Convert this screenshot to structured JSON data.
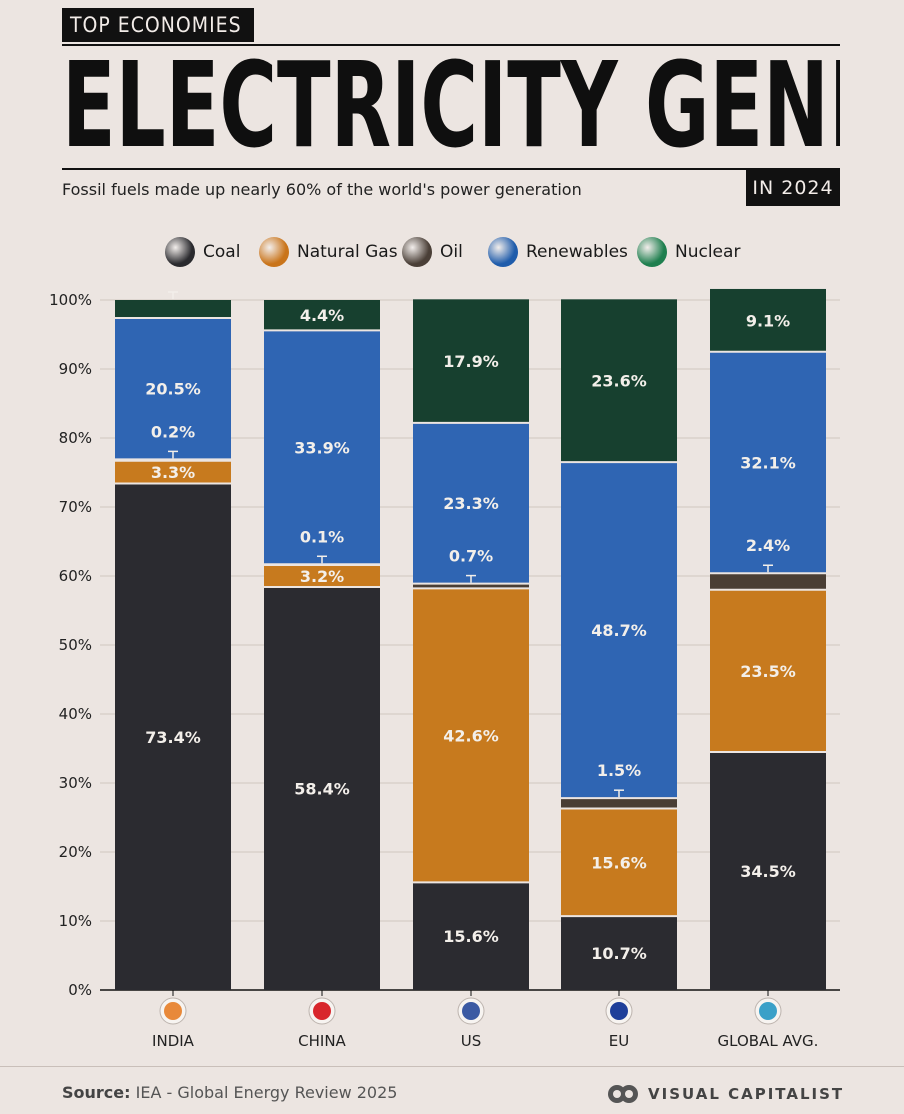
{
  "header": {
    "kicker": "TOP ECONOMIES",
    "title": "ELECTRICITY GENERATION",
    "subtitle": "Fossil fuels made up nearly 60% of the world's power generation",
    "year": "IN 2024"
  },
  "legend": {
    "items": [
      {
        "label": "Coal",
        "color": "#2a2a2e",
        "icon": "coal-dot"
      },
      {
        "label": "Natural Gas",
        "color": "#c9741a",
        "icon": "natural-gas-dot"
      },
      {
        "label": "Oil",
        "color": "#4a3f37",
        "icon": "oil-dot"
      },
      {
        "label": "Renewables",
        "color": "#1f5cab",
        "icon": "renewables-dot"
      },
      {
        "label": "Nuclear",
        "color": "#1f7f4f",
        "icon": "nuclear-dot"
      }
    ]
  },
  "chart_data": {
    "type": "bar",
    "stacked": true,
    "categories": [
      "INDIA",
      "CHINA",
      "US",
      "EU",
      "GLOBAL AVG."
    ],
    "flag_icons": [
      "india-flag-icon",
      "china-flag-icon",
      "us-flag-icon",
      "eu-flag-icon",
      "globe-icon"
    ],
    "ylim": [
      0,
      100
    ],
    "yticks": [
      "0%",
      "10%",
      "20%",
      "30%",
      "40%",
      "50%",
      "60%",
      "70%",
      "80%",
      "90%",
      "100%"
    ],
    "grid": true,
    "series": [
      {
        "name": "Coal",
        "color": "#2b2b30",
        "values": [
          73.4,
          58.4,
          15.6,
          10.7,
          34.5
        ],
        "labels": [
          "73.4%",
          "58.4%",
          "15.6%",
          "10.7%",
          "34.5%"
        ]
      },
      {
        "name": "Natural Gas",
        "color": "#c77a1e",
        "values": [
          3.3,
          3.2,
          42.6,
          15.6,
          23.5
        ],
        "labels": [
          "3.3%",
          "3.2%",
          "42.6%",
          "15.6%",
          "23.5%"
        ]
      },
      {
        "name": "Oil",
        "color": "#4a3e34",
        "values": [
          0.2,
          0.1,
          0.7,
          1.5,
          2.4
        ],
        "labels": [
          "0.2%",
          "0.1%",
          "0.7%",
          "1.5%",
          "2.4%"
        ]
      },
      {
        "name": "Renewables",
        "color": "#2f65b3",
        "values": [
          20.5,
          33.9,
          23.3,
          48.7,
          32.1
        ],
        "labels": [
          "20.5%",
          "33.9%",
          "23.3%",
          "48.7%",
          "32.1%"
        ]
      },
      {
        "name": "Nuclear",
        "color": "#17402f",
        "values": [
          2.6,
          4.4,
          17.9,
          23.6,
          9.1
        ],
        "labels": [
          "2.6%",
          "4.4%",
          "17.9%",
          "23.6%",
          "9.1%"
        ]
      }
    ]
  },
  "footer": {
    "source_label": "Source:",
    "source_text": "IEA - Global Energy Review 2025",
    "brand": "VISUAL CAPITALIST"
  }
}
